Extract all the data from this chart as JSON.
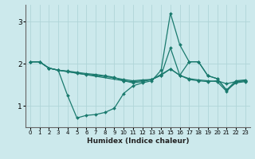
{
  "xlabel": "Humidex (Indice chaleur)",
  "xlim": [
    -0.5,
    23.5
  ],
  "ylim": [
    0.5,
    3.4
  ],
  "yticks": [
    1,
    2,
    3
  ],
  "xticks": [
    0,
    1,
    2,
    3,
    4,
    5,
    6,
    7,
    8,
    9,
    10,
    11,
    12,
    13,
    14,
    15,
    16,
    17,
    18,
    19,
    20,
    21,
    22,
    23
  ],
  "bg_color": "#cce9ec",
  "grid_color": "#b0d5d8",
  "line_color": "#1a7a6e",
  "lines": [
    {
      "x": [
        0,
        1,
        2,
        3,
        4,
        5,
        6,
        7,
        8,
        9,
        10,
        11,
        12,
        13,
        14,
        15,
        16,
        17,
        18,
        19,
        20,
        21,
        22,
        23
      ],
      "y": [
        2.05,
        2.05,
        1.9,
        1.85,
        1.25,
        0.72,
        0.78,
        0.8,
        0.85,
        0.95,
        1.3,
        1.48,
        1.55,
        1.6,
        1.85,
        3.2,
        2.45,
        2.05,
        2.05,
        1.72,
        1.65,
        1.38,
        1.55,
        1.58
      ]
    },
    {
      "x": [
        0,
        1,
        2,
        3,
        4,
        5,
        6,
        7,
        8,
        9,
        10,
        11,
        12,
        13,
        14,
        15,
        16,
        17,
        18,
        19,
        20,
        21,
        22,
        23
      ],
      "y": [
        2.05,
        2.05,
        1.9,
        1.85,
        1.82,
        1.78,
        1.75,
        1.73,
        1.7,
        1.67,
        1.63,
        1.6,
        1.62,
        1.63,
        1.75,
        1.88,
        1.73,
        1.63,
        1.6,
        1.58,
        1.6,
        1.53,
        1.58,
        1.6
      ]
    },
    {
      "x": [
        0,
        1,
        2,
        3,
        4,
        5,
        6,
        7,
        8,
        9,
        10,
        11,
        12,
        13,
        14,
        15,
        16,
        17,
        18,
        19,
        20,
        21,
        22,
        23
      ],
      "y": [
        2.05,
        2.05,
        1.9,
        1.85,
        1.83,
        1.8,
        1.77,
        1.75,
        1.72,
        1.68,
        1.6,
        1.58,
        1.6,
        1.63,
        1.73,
        1.88,
        1.73,
        1.65,
        1.62,
        1.6,
        1.58,
        1.35,
        1.58,
        1.6
      ]
    },
    {
      "x": [
        0,
        1,
        2,
        3,
        10,
        11,
        12,
        13,
        14,
        15,
        16,
        17,
        18,
        19,
        20,
        21,
        22,
        23
      ],
      "y": [
        2.05,
        2.05,
        1.9,
        1.85,
        1.6,
        1.55,
        1.58,
        1.63,
        1.73,
        2.38,
        1.73,
        2.05,
        2.05,
        1.72,
        1.65,
        1.38,
        1.6,
        1.62
      ]
    }
  ]
}
